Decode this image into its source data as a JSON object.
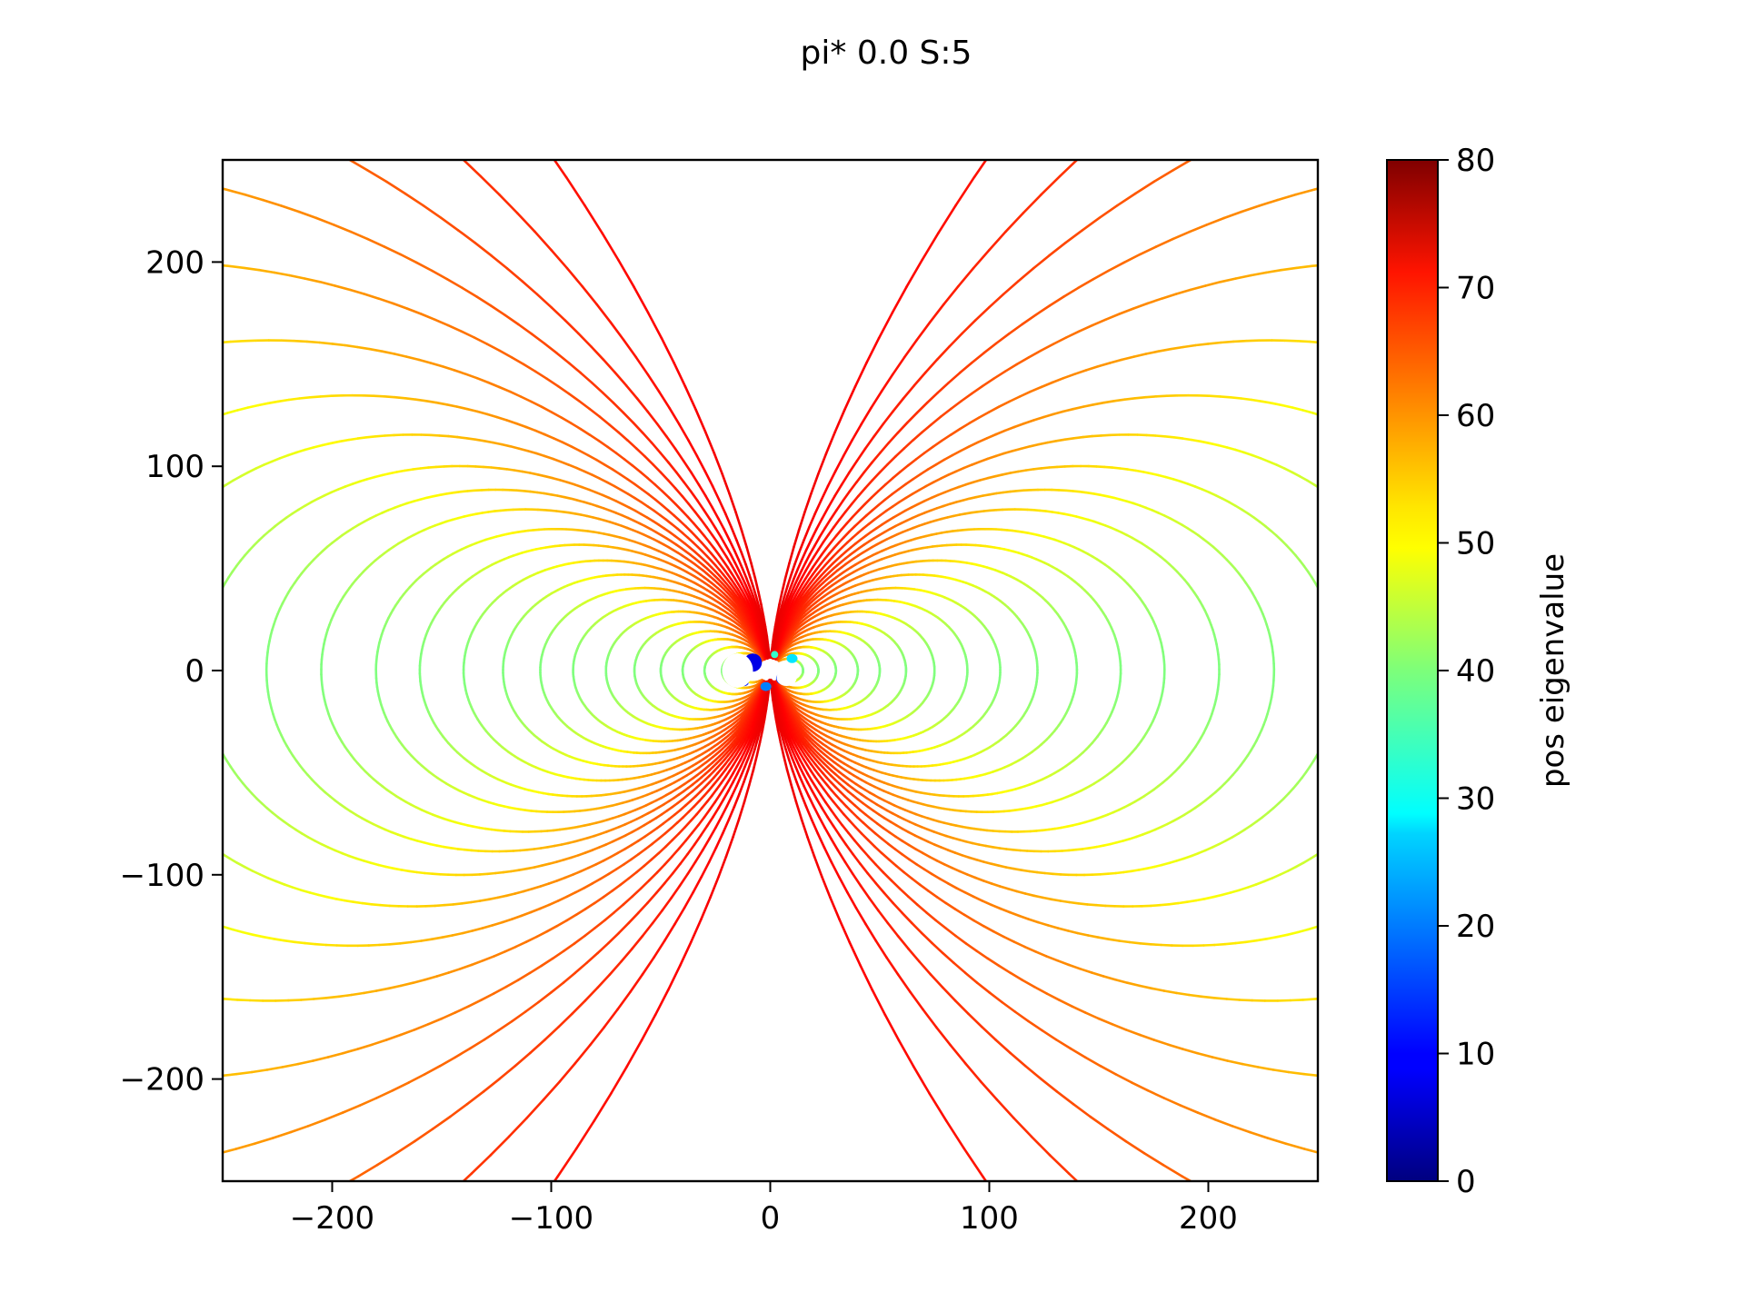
{
  "chart_data": {
    "type": "line",
    "title": "pi* 0.0 S:5",
    "xlabel": "",
    "ylabel": "",
    "xlim": [
      -250,
      250
    ],
    "ylim": [
      -250,
      250
    ],
    "xticks": [
      -200,
      -100,
      0,
      100,
      200
    ],
    "yticks": [
      -200,
      -100,
      0,
      100,
      200
    ],
    "xtick_labels": [
      "−200",
      "−100",
      "0",
      "100",
      "200"
    ],
    "ytick_labels": [
      "−200",
      "−100",
      "0",
      "100",
      "200"
    ],
    "grid": false,
    "legend": "none",
    "description": "Dipole field streamlines colored by pos eigenvalue",
    "colormap": "jet",
    "colorbar": {
      "label": "pos eigenvalue",
      "range": [
        0,
        80
      ],
      "ticks": [
        0,
        10,
        20,
        30,
        40,
        50,
        60,
        70,
        80
      ],
      "tick_labels": [
        "0",
        "10",
        "20",
        "30",
        "40",
        "50",
        "60",
        "70",
        "80"
      ]
    },
    "field": {
      "kind": "dipole",
      "center": [
        0,
        0
      ],
      "loop_widths": [
        15,
        22,
        30,
        40,
        50,
        62,
        75,
        90,
        105,
        122,
        140,
        160,
        180,
        205,
        230,
        260,
        300,
        350,
        420,
        520,
        650,
        850,
        1200,
        2000
      ],
      "far_field_value": 40,
      "near_axis_value": 72
    }
  }
}
